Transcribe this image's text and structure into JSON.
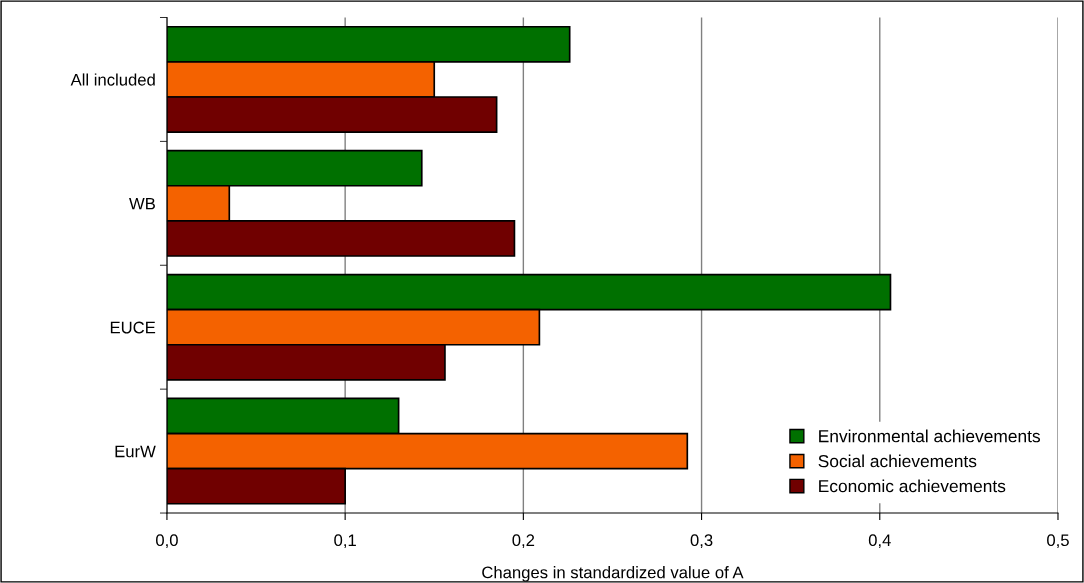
{
  "chart_data": {
    "type": "bar",
    "orientation": "horizontal",
    "xlabel": "Changes in standardized value of A",
    "categories": [
      "All included",
      "WB",
      "EUCE",
      "EurW"
    ],
    "series": [
      {
        "name": "Environmental achievements",
        "color": "#007000",
        "values": [
          0.226,
          0.143,
          0.406,
          0.13
        ]
      },
      {
        "name": "Social achievements",
        "color": "#f46200",
        "values": [
          0.15,
          0.035,
          0.209,
          0.292
        ]
      },
      {
        "name": "Economic achievements",
        "color": "#700000",
        "values": [
          0.185,
          0.195,
          0.156,
          0.1
        ]
      }
    ],
    "xlim": [
      0,
      0.5
    ],
    "xticks": [
      {
        "value": 0,
        "label": "0,0"
      },
      {
        "value": 0.1,
        "label": "0,1"
      },
      {
        "value": 0.2,
        "label": "0,2"
      },
      {
        "value": 0.3,
        "label": "0,3"
      },
      {
        "value": 0.4,
        "label": "0,4"
      },
      {
        "value": 0.5,
        "label": "0,5"
      }
    ],
    "grid": "x",
    "legend": "bottom right"
  }
}
